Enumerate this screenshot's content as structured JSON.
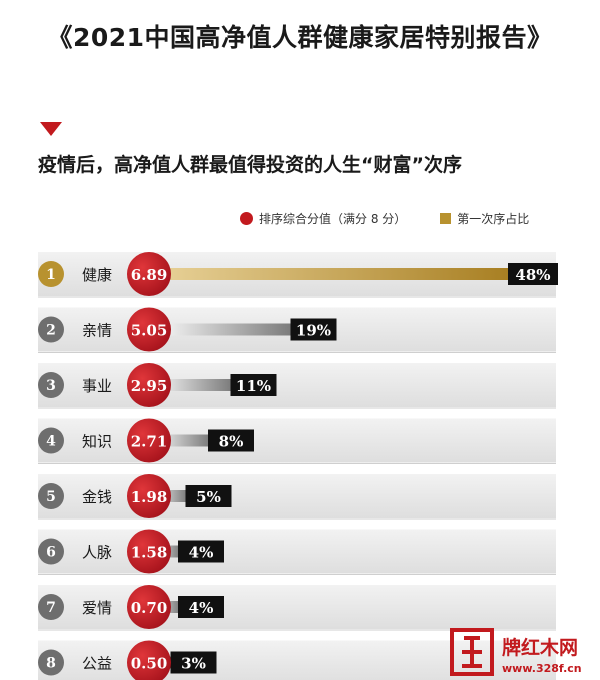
{
  "page": {
    "title": "《2021中国高净值人群健康家居特别报告》",
    "subtitle": "疫情后，高净值人群最值得投资的人生“财富”次序"
  },
  "legend": {
    "score_label": "排序综合分值（满分 8 分）",
    "share_label": "第一次序占比"
  },
  "watermark": {
    "brand": "牌红木网",
    "url": "www.328f.cn"
  },
  "colors": {
    "red": "#c21a1e",
    "gold": "#b8922f",
    "gray_bar": "#8a8a8a",
    "row_bg": "#e9e9e9",
    "label_bg": "#111111"
  },
  "chart_data": {
    "type": "bar",
    "title": "疫情后，高净值人群最值得投资的人生“财富”次序",
    "score_max": 8,
    "categories": [
      "健康",
      "亲情",
      "事业",
      "知识",
      "金钱",
      "人脉",
      "爱情",
      "公益"
    ],
    "ranks": [
      "1",
      "2",
      "3",
      "4",
      "5",
      "6",
      "7",
      "8"
    ],
    "series": [
      {
        "name": "排序综合分值（满分 8 分）",
        "values": [
          6.89,
          5.05,
          2.95,
          2.71,
          1.98,
          1.58,
          0.7,
          0.5
        ],
        "labels": [
          "6.89",
          "5.05",
          "2.95",
          "2.71",
          "1.98",
          "1.58",
          "0.70",
          "0.50"
        ]
      },
      {
        "name": "第一次序占比",
        "values": [
          48,
          19,
          11,
          8,
          5,
          4,
          4,
          3
        ],
        "labels": [
          "48%",
          "19%",
          "11%",
          "8%",
          "5%",
          "4%",
          "4%",
          "3%"
        ]
      }
    ]
  }
}
